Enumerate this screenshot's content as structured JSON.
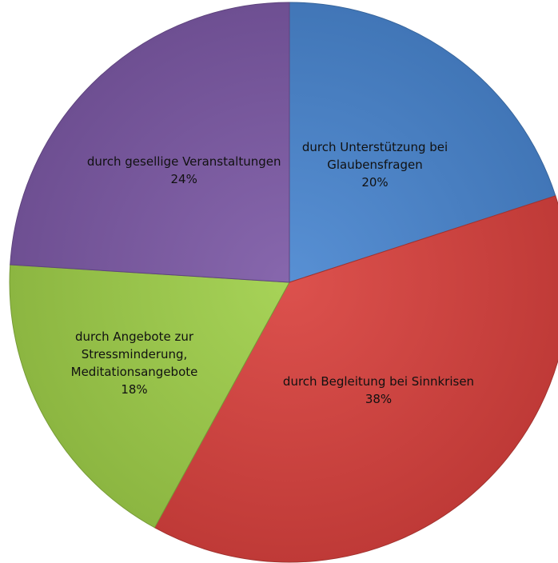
{
  "chart_data": {
    "type": "pie",
    "title": "",
    "slices": [
      {
        "label_lines": [
          "durch Unterstützung bei",
          "Glaubensfragen"
        ],
        "value": 20,
        "value_label": "20%",
        "color": "#4a86d0"
      },
      {
        "label_lines": [
          "durch Begleitung bei Sinnkrisen"
        ],
        "value": 38,
        "value_label": "38%",
        "color": "#d9423e"
      },
      {
        "label_lines": [
          "durch Angebote zur",
          "Stressminderung,",
          "Meditationsangebote"
        ],
        "value": 18,
        "value_label": "18%",
        "color": "#9fcf4a"
      },
      {
        "label_lines": [
          "durch gesellige Veranstaltungen"
        ],
        "value": 24,
        "value_label": "24%",
        "color": "#7d5aa6"
      }
    ],
    "start_angle": "12 o'clock",
    "direction": "clockwise",
    "legend": "none"
  }
}
